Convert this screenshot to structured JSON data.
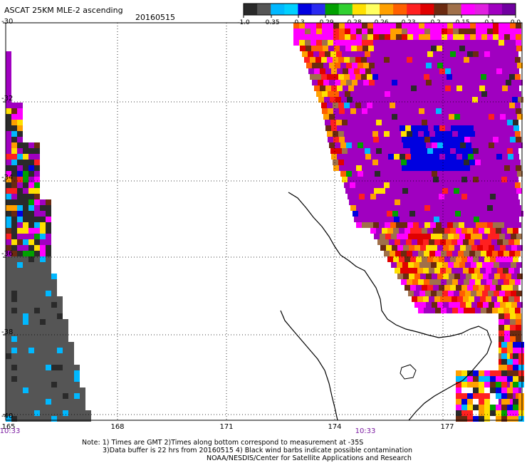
{
  "header": {
    "title": "ASCAT 25KM MLE-2 ascending",
    "date": "20160515"
  },
  "legend": {
    "colors": [
      "#2a2a2a",
      "#555555",
      "#00b8ff",
      "#00d0ff",
      "#0000e0",
      "#2a2af0",
      "#00a000",
      "#30d030",
      "#ffe000",
      "#ffff60",
      "#ffa000",
      "#ff6000",
      "#ff2020",
      "#e00000",
      "#6b2a10",
      "#a0704a",
      "#ff00ff",
      "#e020e0",
      "#a000c0",
      "#7000a0"
    ],
    "tick_labels": [
      "-1.0",
      "-0.35",
      "-0.3",
      "-0.29",
      "-0.28",
      "-0.26",
      "-0.23",
      "-0.2",
      "-0.15",
      "-0.1",
      "0.0"
    ]
  },
  "axes": {
    "y_labels": [
      "-30",
      "-32",
      "-34",
      "-36",
      "-38",
      "-40"
    ],
    "x_labels": [
      "165",
      "168",
      "171",
      "174",
      "177"
    ],
    "time_labels": [
      "10:33",
      "10:33"
    ]
  },
  "notes": [
    "Note: 1) Times are GMT 2)Times along bottom correspond to measurement at -35S",
    "3)Data buffer is 22 hrs from 20160515 4) Black wind barbs indicate possible contamination",
    "NOAA/NESDIS/Center for Satellite Applications and Research"
  ]
}
